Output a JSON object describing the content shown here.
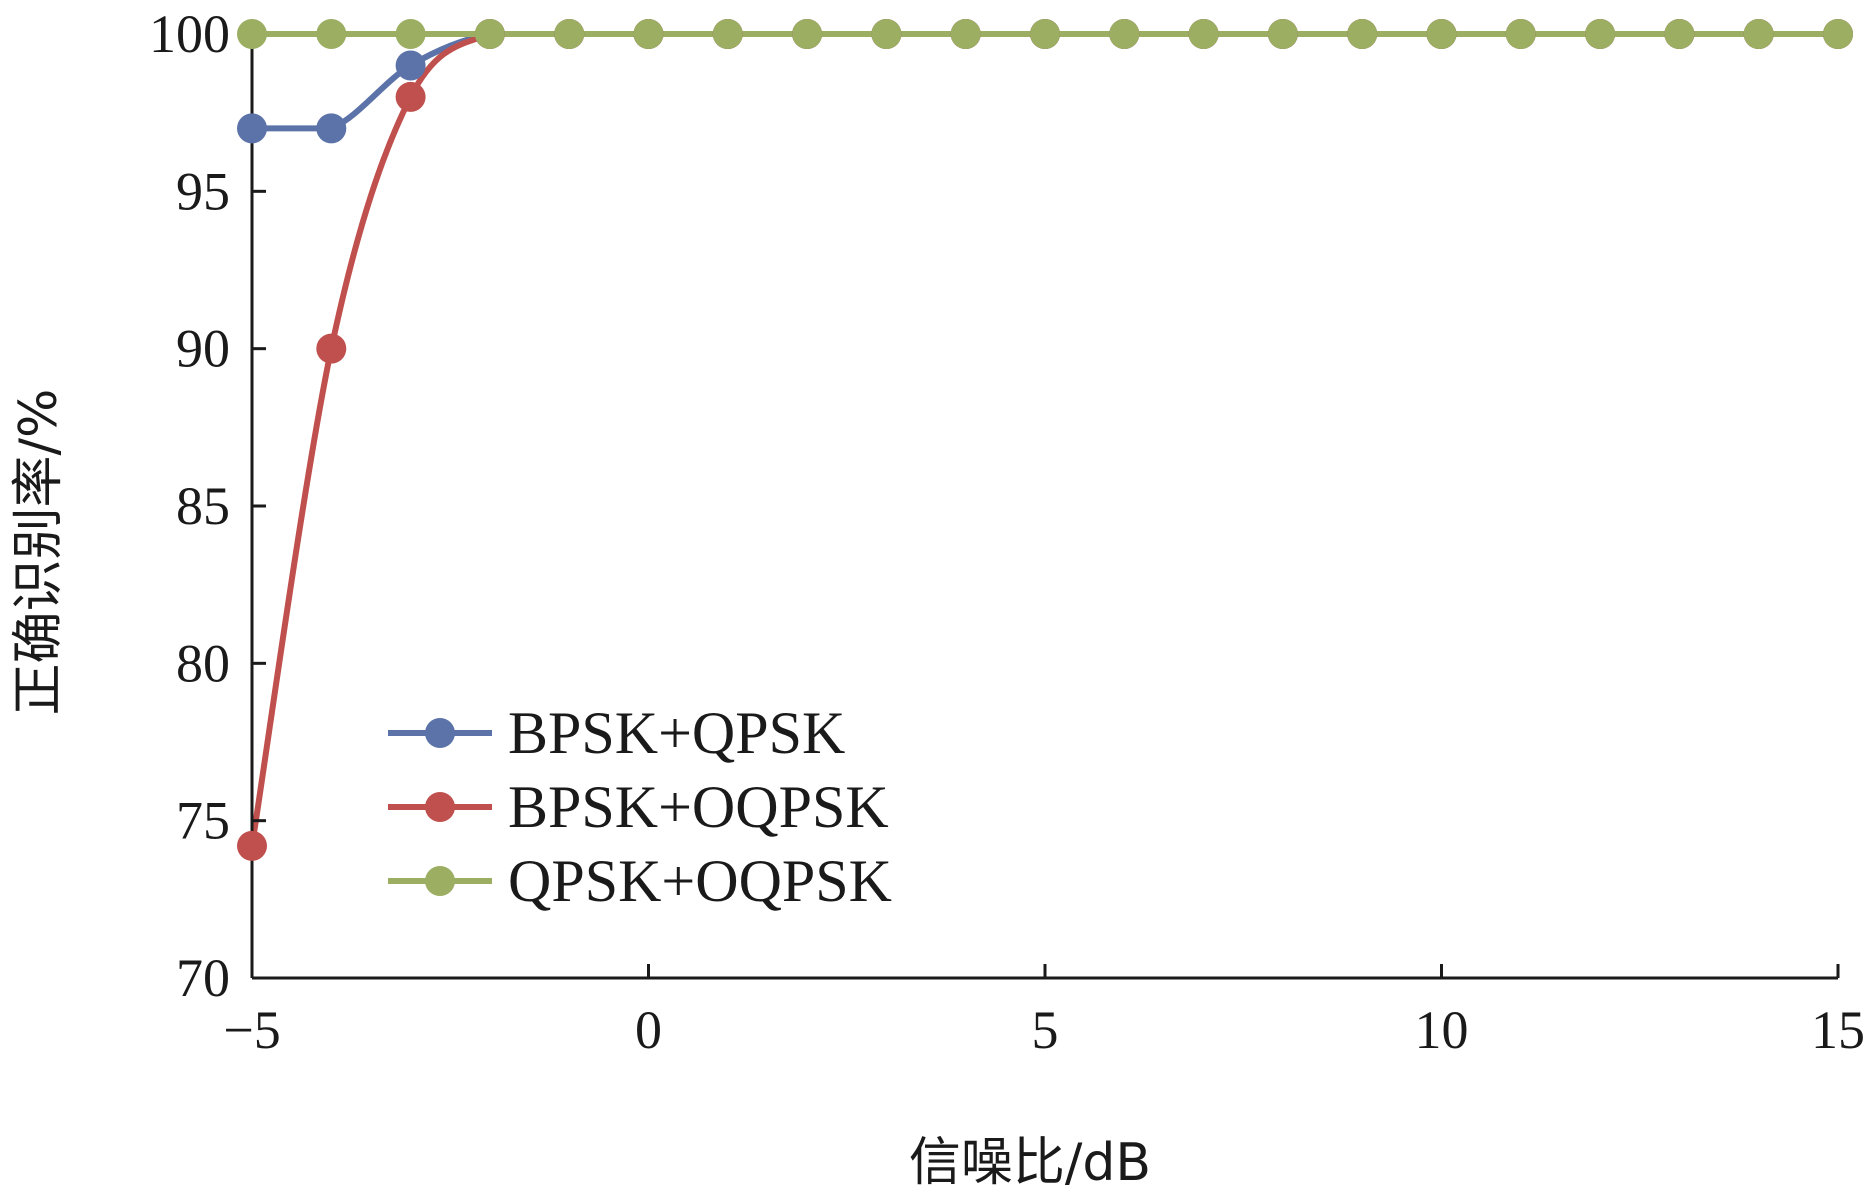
{
  "chart_data": {
    "type": "line",
    "xlabel": "信噪比/dB",
    "ylabel": "正确识别率/%",
    "xlim": [
      -5,
      15
    ],
    "ylim": [
      70,
      100
    ],
    "xticks": [
      -5,
      0,
      5,
      10,
      15
    ],
    "xtick_labels": [
      "−5",
      "0",
      "5",
      "10",
      "15"
    ],
    "yticks": [
      70,
      75,
      80,
      85,
      90,
      95,
      100
    ],
    "grid": false,
    "legend_position": "lower-left",
    "series": [
      {
        "name": "BPSK+QPSK",
        "color": "#5b73a8",
        "x": [
          -5,
          -4,
          -3,
          -2,
          -1,
          0,
          1,
          2,
          3,
          4,
          5,
          6,
          7,
          8,
          9,
          10,
          11,
          12,
          13,
          14,
          15
        ],
        "y": [
          97,
          97,
          99,
          100,
          100,
          100,
          100,
          100,
          100,
          100,
          100,
          100,
          100,
          100,
          100,
          100,
          100,
          100,
          100,
          100,
          100
        ]
      },
      {
        "name": "BPSK+OQPSK",
        "color": "#c0504d",
        "x": [
          -5,
          -4,
          -3,
          -2,
          -1,
          0,
          1,
          2,
          3,
          4,
          5,
          6,
          7,
          8,
          9,
          10,
          11,
          12,
          13,
          14,
          15
        ],
        "y": [
          74.2,
          90,
          98,
          100,
          100,
          100,
          100,
          100,
          100,
          100,
          100,
          100,
          100,
          100,
          100,
          100,
          100,
          100,
          100,
          100,
          100
        ]
      },
      {
        "name": "QPSK+OQPSK",
        "color": "#9bae62",
        "x": [
          -5,
          -4,
          -3,
          -2,
          -1,
          0,
          1,
          2,
          3,
          4,
          5,
          6,
          7,
          8,
          9,
          10,
          11,
          12,
          13,
          14,
          15
        ],
        "y": [
          100,
          100,
          100,
          100,
          100,
          100,
          100,
          100,
          100,
          100,
          100,
          100,
          100,
          100,
          100,
          100,
          100,
          100,
          100,
          100,
          100
        ]
      }
    ]
  }
}
